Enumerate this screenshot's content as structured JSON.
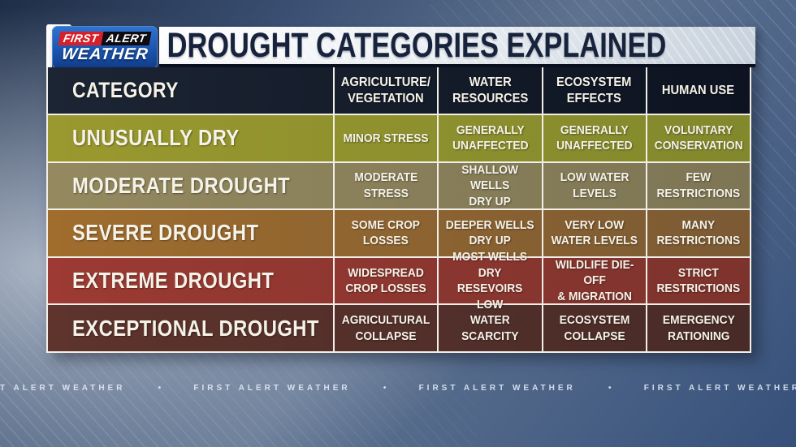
{
  "logo": {
    "first": "FIRST",
    "alert": "ALERT",
    "weather": "WEATHER"
  },
  "title_bar": {
    "title": "DROUGHT CATEGORIES EXPLAINED"
  },
  "table": {
    "header": {
      "category": "CATEGORY",
      "cols": [
        "AGRICULTURE/\nVEGETATION",
        "WATER\nRESOURCES",
        "ECOSYSTEM\nEFFECTS",
        "HUMAN USE"
      ]
    },
    "rows": [
      {
        "category": "UNUSUALLY DRY",
        "cells": [
          "MINOR STRESS",
          "GENERALLY\nUNAFFECTED",
          "GENERALLY\nUNAFFECTED",
          "VOLUNTARY\nCONSERVATION"
        ]
      },
      {
        "category": "MODERATE DROUGHT",
        "cells": [
          "MODERATE\nSTRESS",
          "SHALLOW WELLS\nDRY UP",
          "LOW WATER\nLEVELS",
          "FEW\nRESTRICTIONS"
        ]
      },
      {
        "category": "SEVERE DROUGHT",
        "cells": [
          "SOME CROP\nLOSSES",
          "DEEPER WELLS\nDRY UP",
          "VERY LOW\nWATER LEVELS",
          "MANY\nRESTRICTIONS"
        ]
      },
      {
        "category": "EXTREME DROUGHT",
        "cells": [
          "WIDESPREAD\nCROP LOSSES",
          "MOST WELLS DRY\nRESEVOIRS LOW",
          "WILDLIFE DIE-OFF\n& MIGRATION",
          "STRICT\nRESTRICTIONS"
        ]
      },
      {
        "category": "EXCEPTIONAL DROUGHT",
        "cells": [
          "AGRICULTURAL\nCOLLAPSE",
          "WATER\nSCARCITY",
          "ECOSYSTEM\nCOLLAPSE",
          "EMERGENCY\nRATIONING"
        ]
      }
    ],
    "row_colors": {
      "header": [
        "#1c2534",
        "#0d1320"
      ],
      "0": [
        "#9a992f",
        "#82882c"
      ],
      "1": [
        "#94895f",
        "#7d7554"
      ],
      "2": [
        "#a06d2d",
        "#7b5a34"
      ],
      "3": [
        "#9c3a33",
        "#7d332d"
      ],
      "4": [
        "#5e342d",
        "#482b27"
      ]
    },
    "divider_color": "#f2efe8"
  },
  "footer_ticker": {
    "separator": "•",
    "items": [
      "T ALERT WEATHER",
      "FIRST ALERT WEATHER",
      "FIRST ALERT WEATHER",
      "FIRST ALERT WEATHER"
    ]
  },
  "colors": {
    "logo_red": "#d6202a",
    "logo_black": "#0c0c12",
    "logo_blue_top": "#2f74cf",
    "logo_blue_bottom": "#123f90",
    "title_text": "#17233c",
    "background_steel_blue": "#5f7390"
  },
  "chart_data": {
    "type": "table",
    "title": "DROUGHT CATEGORIES EXPLAINED",
    "columns": [
      "CATEGORY",
      "AGRICULTURE/VEGETATION",
      "WATER RESOURCES",
      "ECOSYSTEM EFFECTS",
      "HUMAN USE"
    ],
    "rows": [
      [
        "UNUSUALLY DRY",
        "MINOR STRESS",
        "GENERALLY UNAFFECTED",
        "GENERALLY UNAFFECTED",
        "VOLUNTARY CONSERVATION"
      ],
      [
        "MODERATE DROUGHT",
        "MODERATE STRESS",
        "SHALLOW WELLS DRY UP",
        "LOW WATER LEVELS",
        "FEW RESTRICTIONS"
      ],
      [
        "SEVERE DROUGHT",
        "SOME CROP LOSSES",
        "DEEPER WELLS DRY UP",
        "VERY LOW WATER LEVELS",
        "MANY RESTRICTIONS"
      ],
      [
        "EXTREME DROUGHT",
        "WIDESPREAD CROP LOSSES",
        "MOST WELLS DRY RESEVOIRS LOW",
        "WILDLIFE DIE-OFF & MIGRATION",
        "STRICT RESTRICTIONS"
      ],
      [
        "EXCEPTIONAL DROUGHT",
        "AGRICULTURAL COLLAPSE",
        "WATER SCARCITY",
        "ECOSYSTEM COLLAPSE",
        "EMERGENCY RATIONING"
      ]
    ]
  }
}
